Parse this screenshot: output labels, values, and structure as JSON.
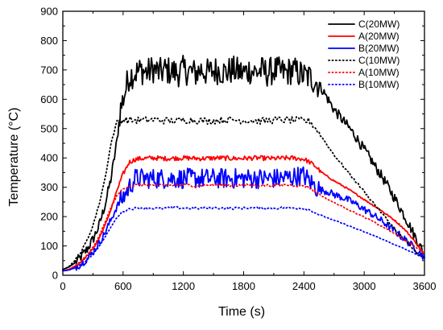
{
  "chart_data": {
    "type": "line",
    "xlabel": "Time (s)",
    "ylabel": "Temperature (°C)",
    "xlim": [
      0,
      3600
    ],
    "ylim": [
      0,
      900
    ],
    "x_ticks": [
      0,
      600,
      1200,
      1800,
      2400,
      3000,
      3600
    ],
    "y_ticks": [
      0,
      100,
      200,
      300,
      400,
      500,
      600,
      700,
      800,
      900
    ],
    "grid": false,
    "legend_position": "top-right",
    "series": [
      {
        "name": "C(20MW)",
        "color": "#000000",
        "style": "solid",
        "points": [
          [
            0,
            20
          ],
          [
            60,
            28
          ],
          [
            120,
            42
          ],
          [
            180,
            62
          ],
          [
            240,
            88
          ],
          [
            300,
            122
          ],
          [
            360,
            168
          ],
          [
            420,
            240
          ],
          [
            480,
            330
          ],
          [
            540,
            460
          ],
          [
            570,
            560
          ],
          [
            600,
            600
          ],
          [
            630,
            640
          ],
          [
            660,
            680
          ],
          [
            720,
            690
          ],
          [
            780,
            700
          ],
          [
            840,
            690
          ],
          [
            900,
            705
          ],
          [
            960,
            690
          ],
          [
            1020,
            700
          ],
          [
            1080,
            695
          ],
          [
            1140,
            690
          ],
          [
            1200,
            700
          ],
          [
            1260,
            695
          ],
          [
            1320,
            688
          ],
          [
            1380,
            702
          ],
          [
            1440,
            690
          ],
          [
            1500,
            698
          ],
          [
            1560,
            700
          ],
          [
            1620,
            690
          ],
          [
            1680,
            700
          ],
          [
            1740,
            695
          ],
          [
            1800,
            690
          ],
          [
            1860,
            700
          ],
          [
            1920,
            692
          ],
          [
            1980,
            698
          ],
          [
            2040,
            690
          ],
          [
            2100,
            700
          ],
          [
            2160,
            694
          ],
          [
            2220,
            690
          ],
          [
            2280,
            700
          ],
          [
            2340,
            690
          ],
          [
            2400,
            680
          ],
          [
            2460,
            675
          ],
          [
            2520,
            660
          ],
          [
            2580,
            635
          ],
          [
            2640,
            600
          ],
          [
            2700,
            565
          ],
          [
            2760,
            540
          ],
          [
            2820,
            515
          ],
          [
            2880,
            490
          ],
          [
            2940,
            460
          ],
          [
            3000,
            428
          ],
          [
            3060,
            398
          ],
          [
            3120,
            365
          ],
          [
            3180,
            335
          ],
          [
            3240,
            300
          ],
          [
            3300,
            265
          ],
          [
            3360,
            228
          ],
          [
            3420,
            190
          ],
          [
            3480,
            150
          ],
          [
            3540,
            110
          ],
          [
            3600,
            70
          ]
        ],
        "jitter": 50
      },
      {
        "name": "A(20MW)",
        "color": "#ff0000",
        "style": "solid",
        "points": [
          [
            0,
            15
          ],
          [
            60,
            20
          ],
          [
            120,
            30
          ],
          [
            180,
            45
          ],
          [
            240,
            65
          ],
          [
            300,
            90
          ],
          [
            360,
            125
          ],
          [
            420,
            170
          ],
          [
            480,
            225
          ],
          [
            540,
            290
          ],
          [
            600,
            345
          ],
          [
            660,
            385
          ],
          [
            720,
            395
          ],
          [
            780,
            398
          ],
          [
            900,
            400
          ],
          [
            1020,
            398
          ],
          [
            1200,
            400
          ],
          [
            1380,
            398
          ],
          [
            1560,
            400
          ],
          [
            1740,
            398
          ],
          [
            1920,
            400
          ],
          [
            2100,
            398
          ],
          [
            2280,
            400
          ],
          [
            2400,
            396
          ],
          [
            2460,
            385
          ],
          [
            2520,
            370
          ],
          [
            2580,
            350
          ],
          [
            2640,
            335
          ],
          [
            2700,
            322
          ],
          [
            2760,
            310
          ],
          [
            2820,
            298
          ],
          [
            2880,
            285
          ],
          [
            2940,
            272
          ],
          [
            3000,
            258
          ],
          [
            3060,
            245
          ],
          [
            3120,
            232
          ],
          [
            3180,
            218
          ],
          [
            3240,
            203
          ],
          [
            3300,
            188
          ],
          [
            3360,
            170
          ],
          [
            3420,
            150
          ],
          [
            3480,
            125
          ],
          [
            3540,
            100
          ],
          [
            3600,
            68
          ]
        ],
        "jitter": 8
      },
      {
        "name": "B(20MW)",
        "color": "#0000ff",
        "style": "solid",
        "points": [
          [
            0,
            15
          ],
          [
            60,
            18
          ],
          [
            120,
            26
          ],
          [
            180,
            38
          ],
          [
            240,
            55
          ],
          [
            300,
            78
          ],
          [
            360,
            108
          ],
          [
            420,
            145
          ],
          [
            480,
            190
          ],
          [
            540,
            235
          ],
          [
            600,
            265
          ],
          [
            660,
            300
          ],
          [
            720,
            330
          ],
          [
            840,
            330
          ],
          [
            960,
            330
          ],
          [
            1080,
            330
          ],
          [
            1200,
            330
          ],
          [
            1320,
            330
          ],
          [
            1440,
            330
          ],
          [
            1560,
            330
          ],
          [
            1680,
            330
          ],
          [
            1800,
            330
          ],
          [
            1920,
            330
          ],
          [
            2040,
            330
          ],
          [
            2160,
            330
          ],
          [
            2280,
            335
          ],
          [
            2400,
            340
          ],
          [
            2460,
            320
          ],
          [
            2520,
            300
          ],
          [
            2580,
            290
          ],
          [
            2640,
            285
          ],
          [
            2700,
            275
          ],
          [
            2760,
            268
          ],
          [
            2820,
            260
          ],
          [
            2880,
            250
          ],
          [
            2940,
            238
          ],
          [
            3000,
            225
          ],
          [
            3060,
            212
          ],
          [
            3120,
            198
          ],
          [
            3180,
            184
          ],
          [
            3240,
            168
          ],
          [
            3300,
            152
          ],
          [
            3360,
            135
          ],
          [
            3420,
            118
          ],
          [
            3480,
            100
          ],
          [
            3540,
            82
          ],
          [
            3600,
            60
          ]
        ],
        "jitter": 35
      },
      {
        "name": "C(10MW)",
        "color": "#000000",
        "style": "dotted",
        "points": [
          [
            0,
            18
          ],
          [
            60,
            30
          ],
          [
            120,
            50
          ],
          [
            180,
            80
          ],
          [
            240,
            118
          ],
          [
            300,
            170
          ],
          [
            360,
            240
          ],
          [
            420,
            330
          ],
          [
            480,
            450
          ],
          [
            540,
            525
          ],
          [
            600,
            530
          ],
          [
            720,
            528
          ],
          [
            900,
            530
          ],
          [
            1080,
            526
          ],
          [
            1260,
            530
          ],
          [
            1440,
            526
          ],
          [
            1620,
            530
          ],
          [
            1800,
            528
          ],
          [
            1980,
            526
          ],
          [
            2160,
            530
          ],
          [
            2340,
            528
          ],
          [
            2460,
            525
          ],
          [
            2520,
            500
          ],
          [
            2580,
            470
          ],
          [
            2640,
            440
          ],
          [
            2700,
            410
          ],
          [
            2760,
            385
          ],
          [
            2820,
            360
          ],
          [
            2880,
            335
          ],
          [
            2940,
            310
          ],
          [
            3000,
            285
          ],
          [
            3060,
            260
          ],
          [
            3120,
            235
          ],
          [
            3180,
            210
          ],
          [
            3240,
            185
          ],
          [
            3300,
            160
          ],
          [
            3360,
            135
          ],
          [
            3420,
            112
          ],
          [
            3480,
            92
          ],
          [
            3540,
            72
          ],
          [
            3600,
            55
          ]
        ],
        "jitter": 12
      },
      {
        "name": "A(10MW)",
        "color": "#ff0000",
        "style": "dotted",
        "points": [
          [
            0,
            15
          ],
          [
            60,
            20
          ],
          [
            120,
            32
          ],
          [
            180,
            48
          ],
          [
            240,
            68
          ],
          [
            300,
            95
          ],
          [
            360,
            132
          ],
          [
            420,
            180
          ],
          [
            480,
            232
          ],
          [
            540,
            272
          ],
          [
            600,
            295
          ],
          [
            660,
            305
          ],
          [
            780,
            308
          ],
          [
            960,
            306
          ],
          [
            1140,
            308
          ],
          [
            1320,
            306
          ],
          [
            1500,
            308
          ],
          [
            1680,
            306
          ],
          [
            1860,
            308
          ],
          [
            2040,
            306
          ],
          [
            2220,
            308
          ],
          [
            2400,
            306
          ],
          [
            2460,
            298
          ],
          [
            2520,
            285
          ],
          [
            2580,
            270
          ],
          [
            2640,
            258
          ],
          [
            2700,
            248
          ],
          [
            2760,
            238
          ],
          [
            2820,
            228
          ],
          [
            2880,
            218
          ],
          [
            2940,
            208
          ],
          [
            3000,
            198
          ],
          [
            3060,
            188
          ],
          [
            3120,
            177
          ],
          [
            3180,
            166
          ],
          [
            3240,
            154
          ],
          [
            3300,
            142
          ],
          [
            3360,
            130
          ],
          [
            3420,
            117
          ],
          [
            3480,
            104
          ],
          [
            3540,
            90
          ],
          [
            3600,
            75
          ]
        ],
        "jitter": 5
      },
      {
        "name": "B(10MW)",
        "color": "#0000ff",
        "style": "dotted",
        "points": [
          [
            0,
            15
          ],
          [
            60,
            18
          ],
          [
            120,
            25
          ],
          [
            180,
            36
          ],
          [
            240,
            52
          ],
          [
            300,
            72
          ],
          [
            360,
            98
          ],
          [
            420,
            130
          ],
          [
            480,
            165
          ],
          [
            540,
            198
          ],
          [
            600,
            218
          ],
          [
            660,
            226
          ],
          [
            780,
            230
          ],
          [
            960,
            228
          ],
          [
            1140,
            230
          ],
          [
            1320,
            228
          ],
          [
            1500,
            230
          ],
          [
            1680,
            228
          ],
          [
            1860,
            230
          ],
          [
            2040,
            228
          ],
          [
            2220,
            230
          ],
          [
            2400,
            228
          ],
          [
            2460,
            222
          ],
          [
            2520,
            212
          ],
          [
            2580,
            203
          ],
          [
            2640,
            195
          ],
          [
            2700,
            187
          ],
          [
            2760,
            180
          ],
          [
            2820,
            172
          ],
          [
            2880,
            164
          ],
          [
            2940,
            156
          ],
          [
            3000,
            148
          ],
          [
            3060,
            140
          ],
          [
            3120,
            132
          ],
          [
            3180,
            123
          ],
          [
            3240,
            114
          ],
          [
            3300,
            105
          ],
          [
            3360,
            96
          ],
          [
            3420,
            87
          ],
          [
            3480,
            78
          ],
          [
            3540,
            68
          ],
          [
            3600,
            58
          ]
        ],
        "jitter": 4
      }
    ]
  }
}
